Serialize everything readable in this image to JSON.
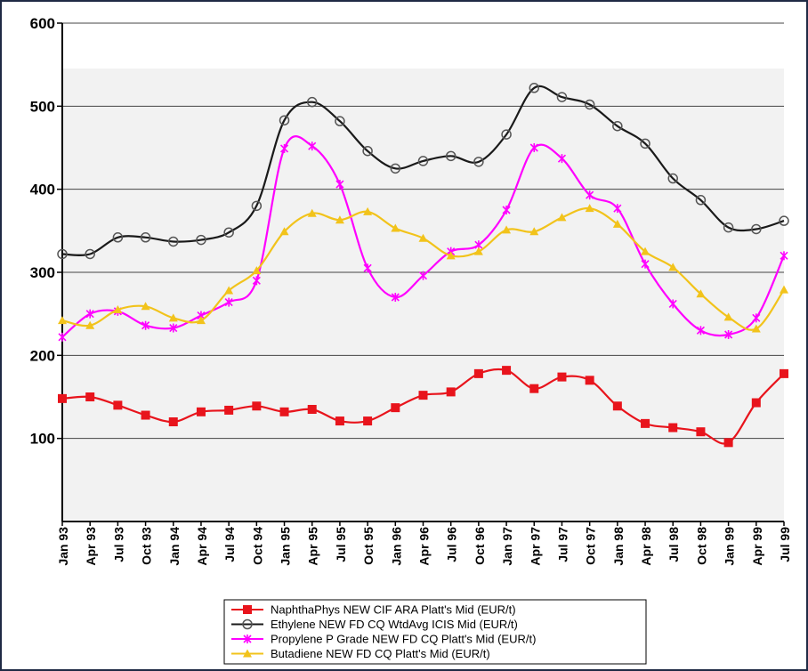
{
  "chart_data": {
    "type": "line",
    "title": "",
    "xlabel": "",
    "ylabel": "",
    "ylim": [
      0,
      600
    ],
    "yticks": [
      "100",
      "200",
      "300",
      "400",
      "500",
      "600"
    ],
    "grid": "horizontal",
    "legend_position": "bottom",
    "categories": [
      "Jan 93",
      "Apr 93",
      "Jul 93",
      "Oct 93",
      "Jan 94",
      "Apr 94",
      "Jul 94",
      "Oct 94",
      "Jan 95",
      "Apr 95",
      "Jul 95",
      "Oct 95",
      "Jan 96",
      "Apr 96",
      "Jul 96",
      "Oct 96",
      "Jan 97",
      "Apr 97",
      "Jul 97",
      "Oct 97",
      "Jan 98",
      "Apr 98",
      "Jul 98",
      "Oct 98",
      "Jan 99",
      "Apr 99",
      "Jul 99"
    ],
    "series": [
      {
        "name": "NaphthaPhys NEW CIF ARA Platt's Mid (EUR/t)",
        "color": "#e8141c",
        "marker": "square",
        "values": [
          148,
          150,
          140,
          128,
          120,
          132,
          134,
          139,
          132,
          135,
          121,
          121,
          137,
          152,
          156,
          178,
          182,
          160,
          174,
          170,
          139,
          118,
          113,
          108,
          95,
          143,
          178
        ]
      },
      {
        "name": "Ethylene NEW FD CQ WtdAvg ICIS Mid (EUR/t)",
        "color": "#1a1a1a",
        "marker": "circle",
        "values": [
          322,
          322,
          342,
          342,
          337,
          339,
          348,
          380,
          483,
          505,
          482,
          446,
          425,
          434,
          440,
          433,
          466,
          522,
          511,
          502,
          476,
          455,
          413,
          387,
          354,
          352,
          362
        ]
      },
      {
        "name": "Propylene P Grade NEW FD CQ Platt's Mid (EUR/t)",
        "color": "#ff00ff",
        "marker": "star",
        "values": [
          222,
          250,
          253,
          236,
          233,
          248,
          264,
          290,
          449,
          452,
          406,
          305,
          270,
          296,
          325,
          333,
          375,
          450,
          437,
          393,
          377,
          310,
          262,
          230,
          225,
          245,
          320
        ]
      },
      {
        "name": "Butadiene NEW FD CQ Platt's Mid (EUR/t)",
        "color": "#f2c31b",
        "marker": "triangle",
        "values": [
          242,
          236,
          255,
          259,
          245,
          242,
          278,
          302,
          349,
          371,
          363,
          373,
          353,
          341,
          320,
          325,
          351,
          349,
          366,
          377,
          358,
          325,
          306,
          274,
          246,
          232,
          279
        ]
      }
    ]
  }
}
